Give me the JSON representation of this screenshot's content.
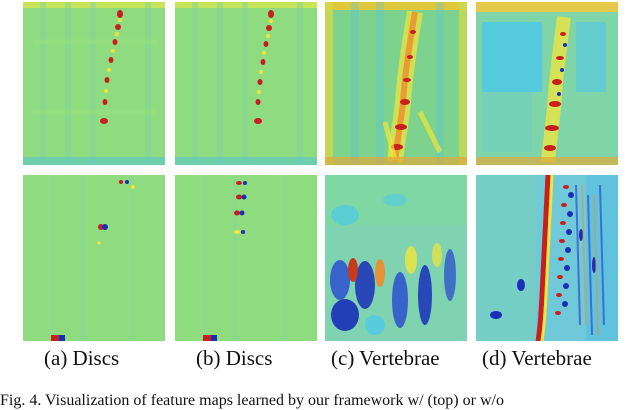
{
  "figure": {
    "panels": [
      {
        "id": "a",
        "caption": "(a) Discs",
        "description": "disc feature map"
      },
      {
        "id": "b",
        "caption": "(b) Discs",
        "description": "disc feature map"
      },
      {
        "id": "c",
        "caption": "(c) Vertebrae",
        "description": "vertebrae feature map"
      },
      {
        "id": "d",
        "caption": "(d) Vertebrae",
        "description": "vertebrae feature map"
      }
    ],
    "caption_text": "Fig. 4.  Visualization of feature maps learned by our framework w/ (top) or w/o",
    "colormap": {
      "background_green": "#8bdc7d",
      "cyan": "#4fc9e8",
      "yellow": "#f2e63a",
      "orange": "#f08a2a",
      "red": "#c81e1e",
      "dark_blue": "#1a2fb8"
    }
  }
}
